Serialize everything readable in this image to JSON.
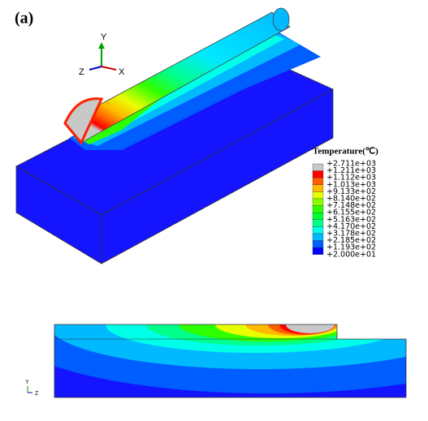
{
  "label": "(a)",
  "triad_top": {
    "y": "Y",
    "z": "Z",
    "x": "X"
  },
  "triad_bottom": {
    "y": "Y",
    "z": "Z"
  },
  "legend": {
    "title": "Temperature(℃)",
    "levels": [
      "+2.711e+03",
      "+1.211e+03",
      "+1.112e+03",
      "+1.013e+03",
      "+9.133e+02",
      "+8.140e+02",
      "+7.148e+02",
      "+6.155e+02",
      "+5.163e+02",
      "+4.170e+02",
      "+3.178e+02",
      "+2.185e+02",
      "+1.193e+02",
      "+2.000e+01"
    ]
  }
}
